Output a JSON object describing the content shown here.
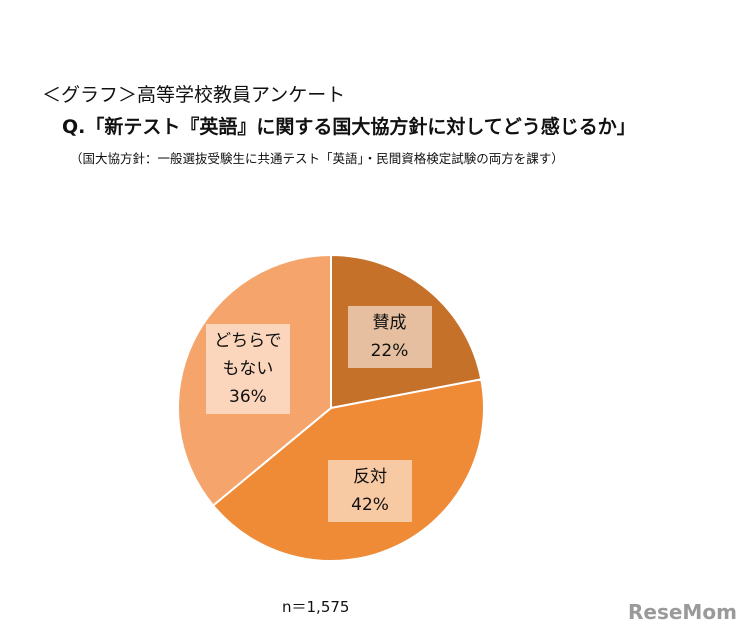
{
  "chart_data": {
    "type": "pie",
    "title": "＜グラフ＞高等学校教員アンケート",
    "subtitle": "Q.「新テスト『英語』に関する国大協方針に対してどう感じるか」",
    "note": "（国大協方針：一般選抜受験生に共通テスト「英語」・民間資格検定試験の両方を課す）",
    "sample_size": "n＝1,575",
    "watermark": "ReseMom",
    "categories": [
      "賛成",
      "反対",
      "どちらでもない"
    ],
    "values": [
      22,
      42,
      36
    ],
    "value_labels": [
      "22%",
      "42%",
      "36%"
    ],
    "colors": [
      "#c6712a",
      "#ef8a36",
      "#f5a56c"
    ]
  }
}
